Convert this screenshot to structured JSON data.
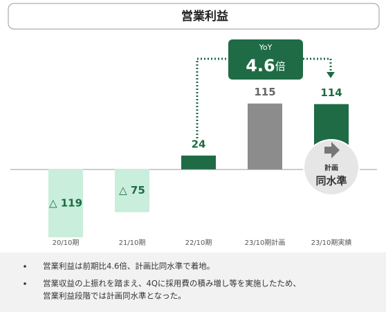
{
  "chart_data": {
    "type": "bar",
    "title": "営業利益",
    "categories": [
      "20/10期",
      "21/10期",
      "22/10期",
      "23/10期計画",
      "23/10期実績"
    ],
    "values": [
      -119,
      -75,
      24,
      115,
      114
    ],
    "value_labels": [
      "△ 119",
      "△ 75",
      "24",
      "115",
      "114"
    ],
    "colors": [
      "#c9eedb",
      "#c9eedb",
      "#1e6b45",
      "#8c8c8c",
      "#1e6b45"
    ],
    "ylim": [
      -125,
      140
    ],
    "annotations": {
      "yoy_label": "YoY",
      "yoy_value": "4.6",
      "yoy_unit": "倍",
      "badge_top": "計画",
      "badge_bottom": "同水準"
    }
  },
  "notes": [
    {
      "lines": [
        "営業利益は前期比4.6倍、計画比同水準で着地。"
      ]
    },
    {
      "lines": [
        "営業収益の上振れを踏まえ、4Qに採用費の積み増し等を実施したため、",
        "営業利益段階では計画同水準となった。"
      ]
    }
  ]
}
